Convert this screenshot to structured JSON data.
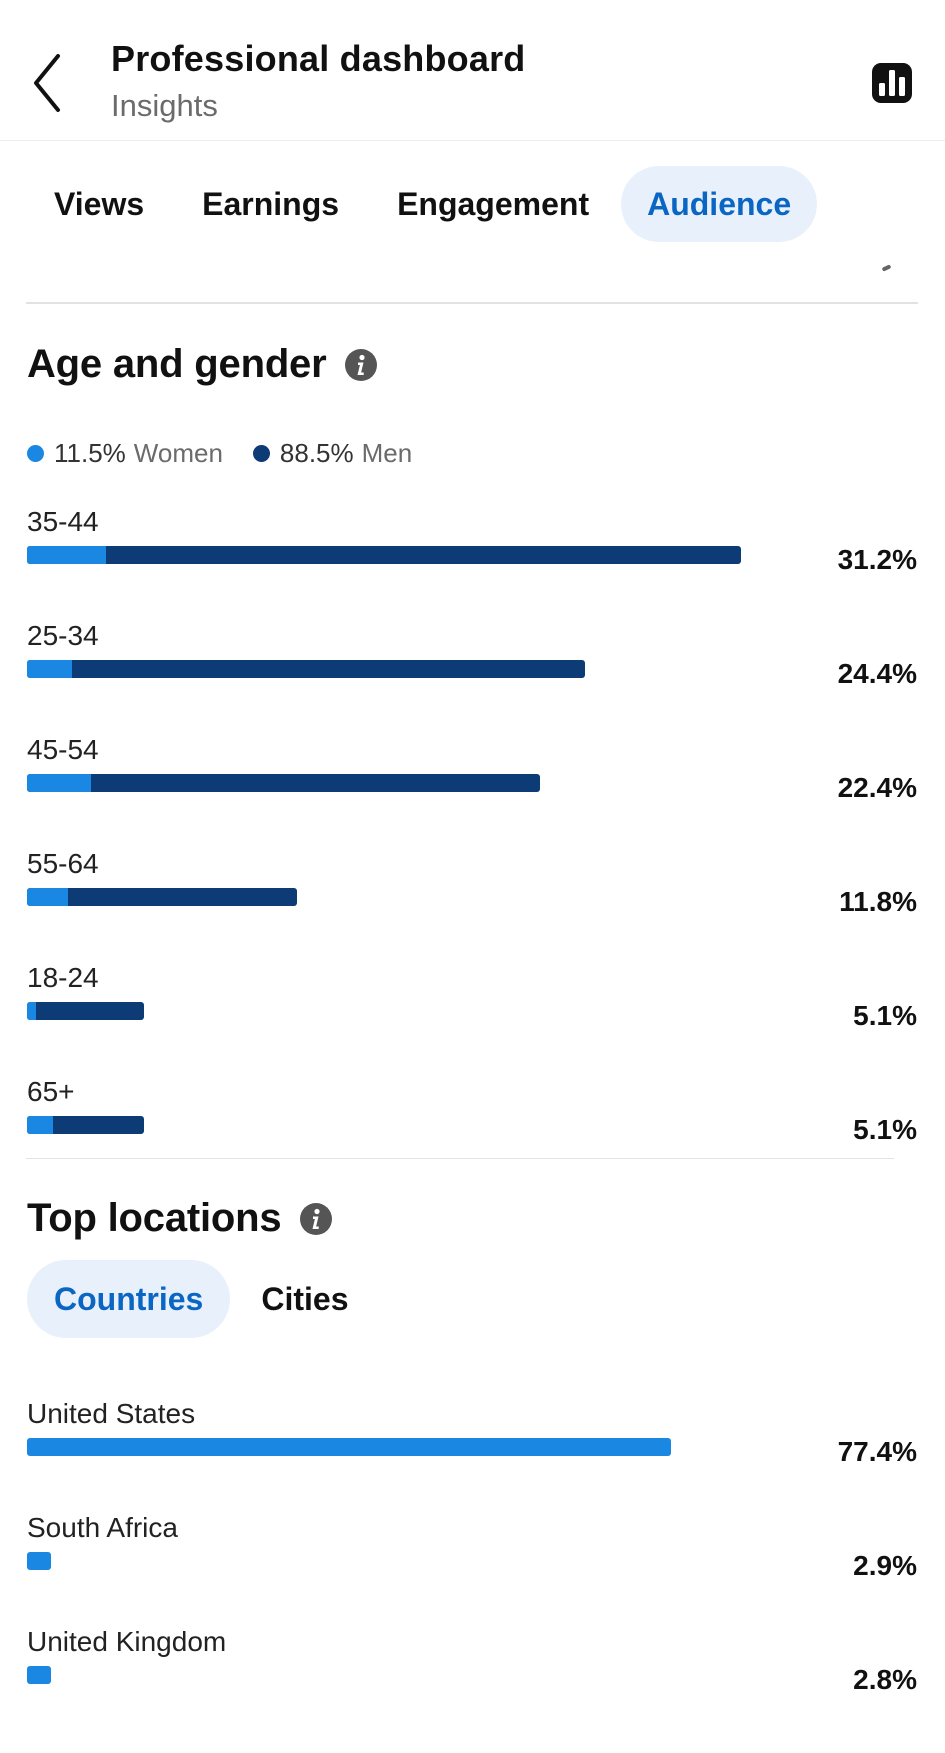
{
  "header": {
    "title": "Professional dashboard",
    "subtitle": "Insights"
  },
  "tabs": [
    {
      "label": "Views",
      "active": false
    },
    {
      "label": "Earnings",
      "active": false
    },
    {
      "label": "Engagement",
      "active": false
    },
    {
      "label": "Audience",
      "active": true
    }
  ],
  "age_gender": {
    "title": "Age and gender",
    "legend": {
      "women": {
        "pct": "11.5%",
        "label": "Women",
        "color": "#1a87e3"
      },
      "men": {
        "pct": "88.5%",
        "label": "Men",
        "color": "#0d3b75"
      }
    },
    "rows": [
      {
        "label": "35-44",
        "value": "31.2%",
        "total_pct": 31.2,
        "women_share": 0.11
      },
      {
        "label": "25-34",
        "value": "24.4%",
        "total_pct": 24.4,
        "women_share": 0.08
      },
      {
        "label": "45-54",
        "value": "22.4%",
        "total_pct": 22.4,
        "women_share": 0.125
      },
      {
        "label": "55-64",
        "value": "11.8%",
        "total_pct": 11.8,
        "women_share": 0.15
      },
      {
        "label": "18-24",
        "value": "5.1%",
        "total_pct": 5.1,
        "women_share": 0.08
      },
      {
        "label": "65+",
        "value": "5.1%",
        "total_pct": 5.1,
        "women_share": 0.22
      }
    ]
  },
  "top_locations": {
    "title": "Top locations",
    "subtabs": [
      {
        "label": "Countries",
        "active": true
      },
      {
        "label": "Cities",
        "active": false
      }
    ],
    "rows": [
      {
        "label": "United States",
        "value": "77.4%",
        "pct": 77.4
      },
      {
        "label": "South Africa",
        "value": "2.9%",
        "pct": 2.9
      },
      {
        "label": "United Kingdom",
        "value": "2.8%",
        "pct": 2.8
      }
    ]
  },
  "icons": {
    "back": "chevron-left-icon",
    "chart": "bar-chart-icon",
    "info": "info-icon"
  },
  "colors": {
    "accent": "#0a66c2",
    "active_tab_bg": "#e8f1fb",
    "women": "#1a87e3",
    "men": "#0d3b75"
  }
}
